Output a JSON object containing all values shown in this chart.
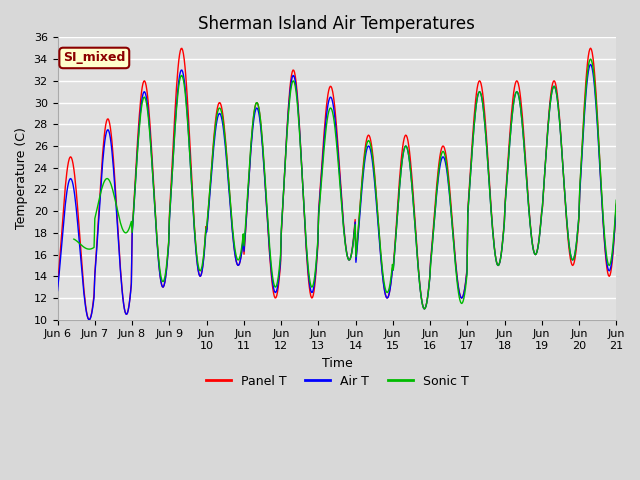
{
  "title": "Sherman Island Air Temperatures",
  "xlabel": "Time",
  "ylabel": "Temperature (C)",
  "ylim": [
    10,
    36
  ],
  "xlim": [
    0,
    15
  ],
  "x_tick_labels": [
    "Jun 6",
    "Jun 7",
    "Jun 8",
    "Jun 9",
    "Jun\n10",
    "Jun\n11",
    "Jun\n12",
    "Jun\n13",
    "Jun\n14",
    "Jun\n15",
    "Jun\n16",
    "Jun\n17",
    "Jun\n18",
    "Jun\n19",
    "Jun\n20",
    "Jun\n21"
  ],
  "plot_bg_color": "#e8e8e8",
  "grid_color": "#ffffff",
  "annotation_text": "SI_mixed",
  "annotation_bg": "#ffffcc",
  "annotation_border": "#8B0000",
  "annotation_text_color": "#8B0000",
  "line_colors": {
    "panel": "#ff0000",
    "air": "#0000ff",
    "sonic": "#00bb00"
  },
  "legend_labels": [
    "Panel T",
    "Air T",
    "Sonic T"
  ],
  "title_fontsize": 12,
  "label_fontsize": 9,
  "tick_fontsize": 8,
  "figsize": [
    6.4,
    4.8
  ],
  "dpi": 100
}
